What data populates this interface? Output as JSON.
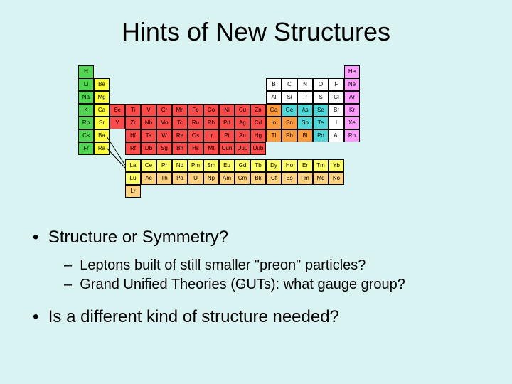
{
  "title": "Hints of New Structures",
  "bullets": {
    "b1": "Structure or Symmetry?",
    "sub1": "Leptons built of still smaller \"preon\" particles?",
    "sub2": "Grand Unified Theories (GUTs): what gauge group?",
    "b2": "Is a different kind of structure needed?"
  },
  "colors": {
    "alkali": "#4fd84f",
    "alkearth": "#ffff3a",
    "tmetal": "#ff4a4a",
    "pmetal": "#ff9a3a",
    "metalloid": "#4fd8d8",
    "nonmetal": "#ffffff",
    "noble": "#ff9aff",
    "lan": "#ffff66",
    "act": "#ffd280",
    "border": "#000000"
  },
  "ptable": {
    "rows": [
      [
        {
          "s": "H",
          "c": "alkali"
        },
        {
          "e": 1
        },
        {
          "e": 1
        },
        {
          "e": 1
        },
        {
          "e": 1
        },
        {
          "e": 1
        },
        {
          "e": 1
        },
        {
          "e": 1
        },
        {
          "e": 1
        },
        {
          "e": 1
        },
        {
          "e": 1
        },
        {
          "e": 1
        },
        {
          "e": 1
        },
        {
          "e": 1
        },
        {
          "e": 1
        },
        {
          "e": 1
        },
        {
          "e": 1
        },
        {
          "s": "He",
          "c": "noble"
        }
      ],
      [
        {
          "s": "Li",
          "c": "alkali"
        },
        {
          "s": "Be",
          "c": "alkearth"
        },
        {
          "e": 1
        },
        {
          "e": 1
        },
        {
          "e": 1
        },
        {
          "e": 1
        },
        {
          "e": 1
        },
        {
          "e": 1
        },
        {
          "e": 1
        },
        {
          "e": 1
        },
        {
          "e": 1
        },
        {
          "e": 1
        },
        {
          "s": "B",
          "c": "nonmetal"
        },
        {
          "s": "C",
          "c": "nonmetal"
        },
        {
          "s": "N",
          "c": "nonmetal"
        },
        {
          "s": "O",
          "c": "nonmetal"
        },
        {
          "s": "F",
          "c": "nonmetal"
        },
        {
          "s": "Ne",
          "c": "noble"
        }
      ],
      [
        {
          "s": "Na",
          "c": "alkali"
        },
        {
          "s": "Mg",
          "c": "alkearth"
        },
        {
          "e": 1
        },
        {
          "e": 1
        },
        {
          "e": 1
        },
        {
          "e": 1
        },
        {
          "e": 1
        },
        {
          "e": 1
        },
        {
          "e": 1
        },
        {
          "e": 1
        },
        {
          "e": 1
        },
        {
          "e": 1
        },
        {
          "s": "Al",
          "c": "nonmetal"
        },
        {
          "s": "Si",
          "c": "nonmetal"
        },
        {
          "s": "P",
          "c": "nonmetal"
        },
        {
          "s": "S",
          "c": "nonmetal"
        },
        {
          "s": "Cl",
          "c": "nonmetal"
        },
        {
          "s": "Ar",
          "c": "noble"
        }
      ],
      [
        {
          "s": "K",
          "c": "alkali"
        },
        {
          "s": "Ca",
          "c": "alkearth"
        },
        {
          "s": "Sc",
          "c": "tmetal"
        },
        {
          "s": "Ti",
          "c": "tmetal"
        },
        {
          "s": "V",
          "c": "tmetal"
        },
        {
          "s": "Cr",
          "c": "tmetal"
        },
        {
          "s": "Mn",
          "c": "tmetal"
        },
        {
          "s": "Fe",
          "c": "tmetal"
        },
        {
          "s": "Co",
          "c": "tmetal"
        },
        {
          "s": "Ni",
          "c": "tmetal"
        },
        {
          "s": "Cu",
          "c": "tmetal"
        },
        {
          "s": "Zn",
          "c": "tmetal"
        },
        {
          "s": "Ga",
          "c": "pmetal"
        },
        {
          "s": "Ge",
          "c": "metalloid"
        },
        {
          "s": "As",
          "c": "metalloid"
        },
        {
          "s": "Se",
          "c": "metalloid"
        },
        {
          "s": "Br",
          "c": "nonmetal"
        },
        {
          "s": "Kr",
          "c": "noble"
        }
      ],
      [
        {
          "s": "Rb",
          "c": "alkali"
        },
        {
          "s": "Sr",
          "c": "alkearth"
        },
        {
          "s": "Y",
          "c": "tmetal"
        },
        {
          "s": "Zr",
          "c": "tmetal"
        },
        {
          "s": "Nb",
          "c": "tmetal"
        },
        {
          "s": "Mo",
          "c": "tmetal"
        },
        {
          "s": "Tc",
          "c": "tmetal"
        },
        {
          "s": "Ru",
          "c": "tmetal"
        },
        {
          "s": "Rh",
          "c": "tmetal"
        },
        {
          "s": "Pd",
          "c": "tmetal"
        },
        {
          "s": "Ag",
          "c": "tmetal"
        },
        {
          "s": "Cd",
          "c": "tmetal"
        },
        {
          "s": "In",
          "c": "pmetal"
        },
        {
          "s": "Sn",
          "c": "pmetal"
        },
        {
          "s": "Sb",
          "c": "metalloid"
        },
        {
          "s": "Te",
          "c": "metalloid"
        },
        {
          "s": "I",
          "c": "nonmetal"
        },
        {
          "s": "Xe",
          "c": "noble"
        }
      ],
      [
        {
          "s": "Cs",
          "c": "alkali"
        },
        {
          "s": "Ba",
          "c": "alkearth"
        },
        {
          "e": 1
        },
        {
          "s": "Hf",
          "c": "tmetal"
        },
        {
          "s": "Ta",
          "c": "tmetal"
        },
        {
          "s": "W",
          "c": "tmetal"
        },
        {
          "s": "Re",
          "c": "tmetal"
        },
        {
          "s": "Os",
          "c": "tmetal"
        },
        {
          "s": "Ir",
          "c": "tmetal"
        },
        {
          "s": "Pt",
          "c": "tmetal"
        },
        {
          "s": "Au",
          "c": "tmetal"
        },
        {
          "s": "Hg",
          "c": "tmetal"
        },
        {
          "s": "Tl",
          "c": "pmetal"
        },
        {
          "s": "Pb",
          "c": "pmetal"
        },
        {
          "s": "Bi",
          "c": "pmetal"
        },
        {
          "s": "Po",
          "c": "metalloid"
        },
        {
          "s": "At",
          "c": "nonmetal"
        },
        {
          "s": "Rn",
          "c": "noble"
        }
      ],
      [
        {
          "s": "Fr",
          "c": "alkali"
        },
        {
          "s": "Ra",
          "c": "alkearth"
        },
        {
          "e": 1
        },
        {
          "s": "Rf",
          "c": "tmetal"
        },
        {
          "s": "Db",
          "c": "tmetal"
        },
        {
          "s": "Sg",
          "c": "tmetal"
        },
        {
          "s": "Bh",
          "c": "tmetal"
        },
        {
          "s": "Hs",
          "c": "tmetal"
        },
        {
          "s": "Mt",
          "c": "tmetal"
        },
        {
          "s": "Uun",
          "c": "tmetal"
        },
        {
          "s": "Uuu",
          "c": "tmetal"
        },
        {
          "s": "Uub",
          "c": "tmetal"
        },
        {
          "e": 1
        },
        {
          "e": 1
        },
        {
          "e": 1
        },
        {
          "e": 1
        },
        {
          "e": 1
        },
        {
          "e": 1
        }
      ]
    ],
    "fblock": [
      [
        {
          "s": "La",
          "c": "lan"
        },
        {
          "s": "Ce",
          "c": "lan"
        },
        {
          "s": "Pr",
          "c": "lan"
        },
        {
          "s": "Nd",
          "c": "lan"
        },
        {
          "s": "Pm",
          "c": "lan"
        },
        {
          "s": "Sm",
          "c": "lan"
        },
        {
          "s": "Eu",
          "c": "lan"
        },
        {
          "s": "Gd",
          "c": "lan"
        },
        {
          "s": "Tb",
          "c": "lan"
        },
        {
          "s": "Dy",
          "c": "lan"
        },
        {
          "s": "Ho",
          "c": "lan"
        },
        {
          "s": "Er",
          "c": "lan"
        },
        {
          "s": "Tm",
          "c": "lan"
        },
        {
          "s": "Yb",
          "c": "lan"
        },
        {
          "s": "Lu",
          "c": "lan"
        }
      ],
      [
        {
          "s": "Ac",
          "c": "act"
        },
        {
          "s": "Th",
          "c": "act"
        },
        {
          "s": "Pa",
          "c": "act"
        },
        {
          "s": "U",
          "c": "act"
        },
        {
          "s": "Np",
          "c": "act"
        },
        {
          "s": "Am",
          "c": "act"
        },
        {
          "s": "Cm",
          "c": "act"
        },
        {
          "s": "Bk",
          "c": "act"
        },
        {
          "s": "Cf",
          "c": "act"
        },
        {
          "s": "Es",
          "c": "act"
        },
        {
          "s": "Fm",
          "c": "act"
        },
        {
          "s": "Md",
          "c": "act"
        },
        {
          "s": "No",
          "c": "act"
        },
        {
          "s": "Lr",
          "c": "act"
        }
      ]
    ]
  }
}
